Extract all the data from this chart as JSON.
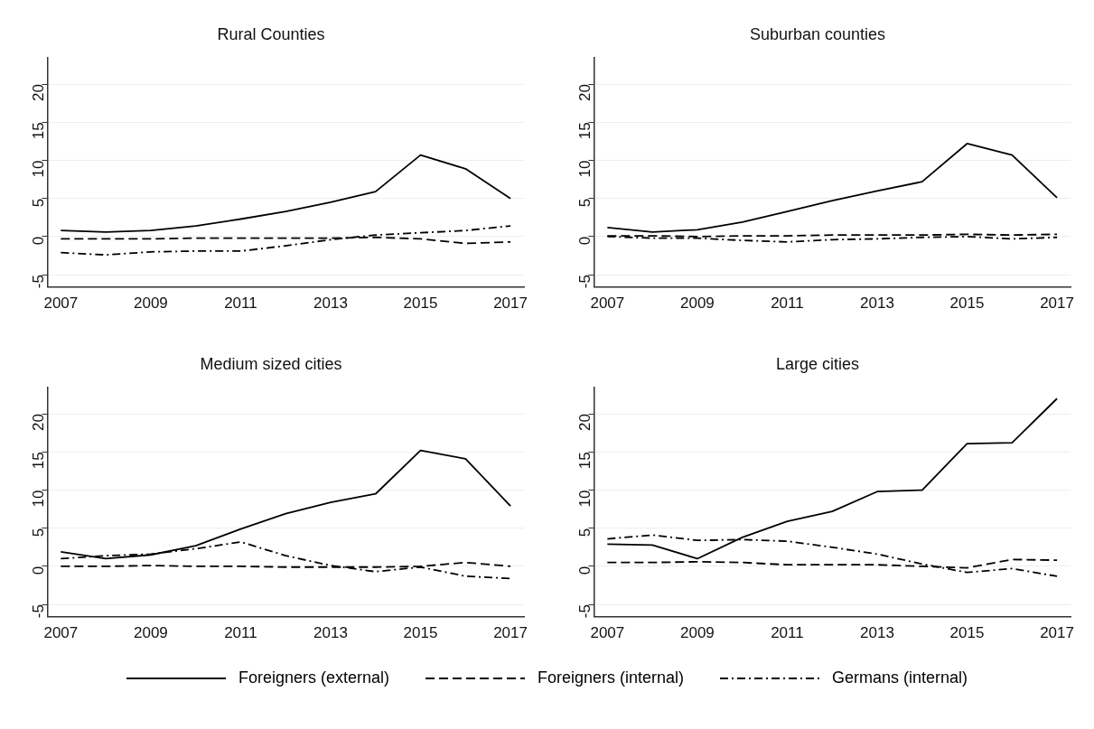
{
  "chart_data": [
    {
      "type": "line",
      "title": "Rural Counties",
      "x": [
        2007,
        2008,
        2009,
        2010,
        2011,
        2012,
        2013,
        2014,
        2015,
        2016,
        2017
      ],
      "xlim": [
        2006.7,
        2017.3
      ],
      "xticks": [
        2007,
        2009,
        2011,
        2013,
        2015,
        2017
      ],
      "ylim": [
        -6.6,
        23.5
      ],
      "yticks": [
        -5,
        0,
        5,
        10,
        15,
        20
      ],
      "grid": "y",
      "marker": "none",
      "series": [
        {
          "color": "#000000",
          "line_style": "solid",
          "values": [
            0.8,
            0.6,
            0.8,
            1.4,
            2.3,
            3.3,
            4.5,
            5.9,
            10.7,
            8.9,
            5.0
          ]
        },
        {
          "color": "#000000",
          "line_style": "dashed",
          "values": [
            -0.3,
            -0.3,
            -0.3,
            -0.2,
            -0.2,
            -0.2,
            -0.2,
            -0.1,
            -0.3,
            -0.9,
            -0.7
          ]
        },
        {
          "color": "#000000",
          "line_style": "dashdot",
          "values": [
            -2.1,
            -2.4,
            -2.0,
            -1.9,
            -1.9,
            -1.2,
            -0.4,
            0.2,
            0.5,
            0.8,
            1.4
          ]
        }
      ]
    },
    {
      "type": "line",
      "title": "Suburban counties",
      "x": [
        2007,
        2008,
        2009,
        2010,
        2011,
        2012,
        2013,
        2014,
        2015,
        2016,
        2017
      ],
      "xlim": [
        2006.7,
        2017.3
      ],
      "xticks": [
        2007,
        2009,
        2011,
        2013,
        2015,
        2017
      ],
      "ylim": [
        -6.6,
        23.5
      ],
      "yticks": [
        -5,
        0,
        5,
        10,
        15,
        20
      ],
      "grid": "y",
      "marker": "none",
      "series": [
        {
          "color": "#000000",
          "line_style": "solid",
          "values": [
            1.2,
            0.6,
            0.9,
            1.9,
            3.3,
            4.7,
            6.0,
            7.2,
            12.2,
            10.7,
            5.1
          ]
        },
        {
          "color": "#000000",
          "line_style": "dashed",
          "values": [
            0.1,
            0.1,
            0.0,
            0.1,
            0.1,
            0.2,
            0.2,
            0.2,
            0.3,
            0.2,
            0.3
          ]
        },
        {
          "color": "#000000",
          "line_style": "dashdot",
          "values": [
            0.0,
            -0.2,
            -0.2,
            -0.5,
            -0.7,
            -0.4,
            -0.3,
            -0.1,
            0.0,
            -0.3,
            -0.1
          ]
        }
      ]
    },
    {
      "type": "line",
      "title": "Medium sized cities",
      "x": [
        2007,
        2008,
        2009,
        2010,
        2011,
        2012,
        2013,
        2014,
        2015,
        2016,
        2017
      ],
      "xlim": [
        2006.7,
        2017.3
      ],
      "xticks": [
        2007,
        2009,
        2011,
        2013,
        2015,
        2017
      ],
      "ylim": [
        -6.6,
        23.5
      ],
      "yticks": [
        -5,
        0,
        5,
        10,
        15,
        20
      ],
      "grid": "y",
      "marker": "none",
      "series": [
        {
          "color": "#000000",
          "line_style": "solid",
          "values": [
            1.9,
            1.0,
            1.5,
            2.7,
            4.9,
            6.9,
            8.4,
            9.5,
            15.2,
            14.1,
            7.9
          ]
        },
        {
          "color": "#000000",
          "line_style": "dashed",
          "values": [
            0.0,
            0.0,
            0.1,
            0.0,
            0.0,
            -0.1,
            -0.1,
            -0.1,
            0.0,
            0.5,
            0.0
          ]
        },
        {
          "color": "#000000",
          "line_style": "dashdot",
          "values": [
            1.0,
            1.4,
            1.6,
            2.3,
            3.2,
            1.4,
            0.1,
            -0.7,
            -0.1,
            -1.3,
            -1.6
          ]
        }
      ]
    },
    {
      "type": "line",
      "title": "Large cities",
      "x": [
        2007,
        2008,
        2009,
        2010,
        2011,
        2012,
        2013,
        2014,
        2015,
        2016,
        2017
      ],
      "xlim": [
        2006.7,
        2017.3
      ],
      "xticks": [
        2007,
        2009,
        2011,
        2013,
        2015,
        2017
      ],
      "ylim": [
        -6.6,
        23.5
      ],
      "yticks": [
        -5,
        0,
        5,
        10,
        15,
        20
      ],
      "grid": "y",
      "marker": "none",
      "legend": "bottom",
      "series": [
        {
          "name": "Foreigners (external)",
          "color": "#000000",
          "line_style": "solid",
          "values": [
            2.9,
            2.8,
            1.0,
            3.8,
            5.9,
            7.2,
            9.8,
            10.0,
            16.1,
            16.2,
            22.0
          ]
        },
        {
          "name": "Foreigners (internal)",
          "color": "#000000",
          "line_style": "dashed",
          "values": [
            0.5,
            0.5,
            0.6,
            0.5,
            0.2,
            0.2,
            0.2,
            0.0,
            -0.2,
            0.9,
            0.8
          ]
        },
        {
          "name": "Germans (internal)",
          "color": "#000000",
          "line_style": "dashdot",
          "values": [
            3.6,
            4.1,
            3.4,
            3.5,
            3.3,
            2.5,
            1.6,
            0.3,
            -0.8,
            -0.3,
            -1.3
          ]
        }
      ]
    }
  ]
}
